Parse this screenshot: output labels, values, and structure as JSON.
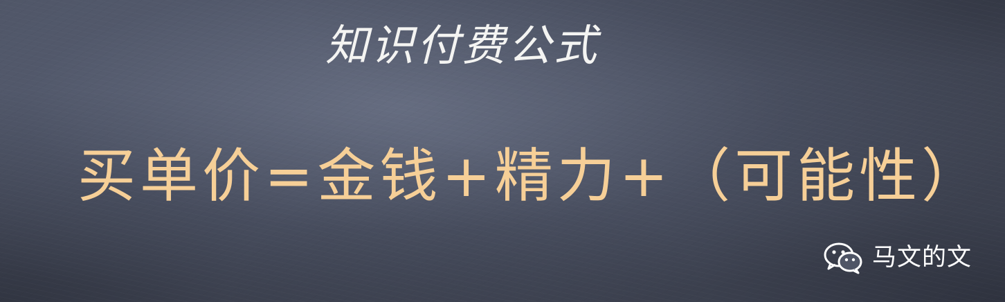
{
  "slide": {
    "title": "知识付费公式",
    "formula": "买单价=金钱+精力+（可能性）"
  },
  "watermark": {
    "icon": "wechat-icon",
    "text": "马文的文"
  },
  "colors": {
    "background": "#4f5566",
    "title": "#f4f4f2",
    "formula": "#f6cf97",
    "watermark": "#ffffff"
  }
}
